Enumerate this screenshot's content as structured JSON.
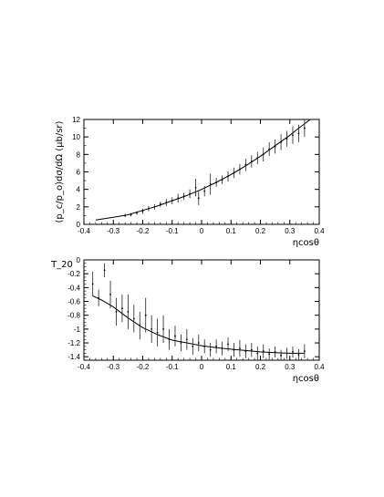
{
  "chart_data": [
    {
      "type": "scatter",
      "xlabel": "ηcosθ",
      "ylabel": "(p_c/p_o)dσ/dΩ (μb/sr)",
      "xlim": [
        -0.4,
        0.4
      ],
      "ylim": [
        0,
        12
      ],
      "xticks": [
        -0.4,
        -0.3,
        -0.2,
        -0.1,
        0,
        0.1,
        0.2,
        0.3,
        0.4
      ],
      "xtick_labels": [
        "-0.4",
        "-0.3",
        "-0.2",
        "-0.1",
        "0",
        "0.1",
        "0.2",
        "0.3",
        "0.4"
      ],
      "yticks": [
        0,
        2,
        4,
        6,
        8,
        10,
        12
      ],
      "ytick_labels": [
        "0",
        "2",
        "4",
        "6",
        "8",
        "10",
        "12"
      ],
      "curve": {
        "x": [
          -0.36,
          -0.3,
          -0.25,
          -0.2,
          -0.15,
          -0.1,
          -0.05,
          0.0,
          0.05,
          0.1,
          0.15,
          0.2,
          0.25,
          0.3,
          0.33,
          0.37
        ],
        "y": [
          0.5,
          0.8,
          1.1,
          1.6,
          2.1,
          2.7,
          3.3,
          4.0,
          4.8,
          5.7,
          6.7,
          7.8,
          9.0,
          10.2,
          11.0,
          12.0
        ]
      },
      "points": [
        {
          "x": -0.26,
          "y": 1.0,
          "err": 0.2
        },
        {
          "x": -0.24,
          "y": 1.1,
          "err": 0.2
        },
        {
          "x": -0.22,
          "y": 1.3,
          "err": 0.2
        },
        {
          "x": -0.2,
          "y": 1.5,
          "err": 0.3
        },
        {
          "x": -0.18,
          "y": 1.8,
          "err": 0.3
        },
        {
          "x": -0.16,
          "y": 2.0,
          "err": 0.3
        },
        {
          "x": -0.14,
          "y": 2.3,
          "err": 0.3
        },
        {
          "x": -0.12,
          "y": 2.5,
          "err": 0.4
        },
        {
          "x": -0.1,
          "y": 2.7,
          "err": 0.4
        },
        {
          "x": -0.08,
          "y": 3.0,
          "err": 0.5
        },
        {
          "x": -0.06,
          "y": 3.2,
          "err": 0.4
        },
        {
          "x": -0.04,
          "y": 3.5,
          "err": 0.5
        },
        {
          "x": -0.02,
          "y": 4.2,
          "err": 1.0
        },
        {
          "x": -0.01,
          "y": 3.0,
          "err": 0.8
        },
        {
          "x": 0.01,
          "y": 3.8,
          "err": 0.6
        },
        {
          "x": 0.03,
          "y": 4.6,
          "err": 1.2
        },
        {
          "x": 0.05,
          "y": 4.8,
          "err": 0.5
        },
        {
          "x": 0.07,
          "y": 5.1,
          "err": 0.5
        },
        {
          "x": 0.09,
          "y": 5.5,
          "err": 0.6
        },
        {
          "x": 0.11,
          "y": 5.9,
          "err": 0.6
        },
        {
          "x": 0.13,
          "y": 6.3,
          "err": 0.6
        },
        {
          "x": 0.15,
          "y": 6.8,
          "err": 0.7
        },
        {
          "x": 0.17,
          "y": 7.2,
          "err": 0.7
        },
        {
          "x": 0.19,
          "y": 7.6,
          "err": 0.7
        },
        {
          "x": 0.21,
          "y": 8.0,
          "err": 0.8
        },
        {
          "x": 0.23,
          "y": 8.6,
          "err": 0.8
        },
        {
          "x": 0.25,
          "y": 8.9,
          "err": 0.8
        },
        {
          "x": 0.27,
          "y": 9.4,
          "err": 0.9
        },
        {
          "x": 0.29,
          "y": 9.8,
          "err": 0.9
        },
        {
          "x": 0.31,
          "y": 10.2,
          "err": 1.0
        },
        {
          "x": 0.33,
          "y": 10.4,
          "err": 1.0
        },
        {
          "x": 0.35,
          "y": 11.0,
          "err": 1.0
        }
      ]
    },
    {
      "type": "scatter",
      "xlabel": "ηcosθ",
      "ylabel": "T_20",
      "xlim": [
        -0.4,
        0.4
      ],
      "ylim": [
        -1.45,
        0
      ],
      "xticks": [
        -0.4,
        -0.3,
        -0.2,
        -0.1,
        0,
        0.1,
        0.2,
        0.3,
        0.4
      ],
      "xtick_labels": [
        "-0.4",
        "-0.3",
        "-0.2",
        "-0.1",
        "0",
        "0.1",
        "0.2",
        "0.3",
        "0.4"
      ],
      "yticks": [
        0,
        -0.2,
        -0.4,
        -0.6,
        -0.8,
        -1,
        -1.2,
        -1.4
      ],
      "ytick_labels": [
        "0",
        "-0.2",
        "-0.4",
        "-0.6",
        "-0.8",
        "-1",
        "-1.2",
        "-1.4"
      ],
      "curve": {
        "x": [
          -0.37,
          -0.34,
          -0.3,
          -0.25,
          -0.2,
          -0.15,
          -0.1,
          -0.05,
          0.0,
          0.05,
          0.1,
          0.15,
          0.2,
          0.25,
          0.3,
          0.35
        ],
        "y": [
          -0.52,
          -0.58,
          -0.68,
          -0.84,
          -0.98,
          -1.08,
          -1.16,
          -1.2,
          -1.24,
          -1.27,
          -1.29,
          -1.31,
          -1.33,
          -1.34,
          -1.35,
          -1.35
        ]
      },
      "points": [
        {
          "x": -0.37,
          "y": -0.35,
          "err": 0.18
        },
        {
          "x": -0.35,
          "y": -0.55,
          "err": 0.12
        },
        {
          "x": -0.33,
          "y": -0.15,
          "err": 0.1
        },
        {
          "x": -0.31,
          "y": -0.5,
          "err": 0.2
        },
        {
          "x": -0.29,
          "y": -0.75,
          "err": 0.2
        },
        {
          "x": -0.27,
          "y": -0.7,
          "err": 0.2
        },
        {
          "x": -0.25,
          "y": -0.75,
          "err": 0.25
        },
        {
          "x": -0.23,
          "y": -0.85,
          "err": 0.2
        },
        {
          "x": -0.21,
          "y": -0.95,
          "err": 0.2
        },
        {
          "x": -0.19,
          "y": -0.8,
          "err": 0.25
        },
        {
          "x": -0.17,
          "y": -1.0,
          "err": 0.2
        },
        {
          "x": -0.15,
          "y": -1.05,
          "err": 0.2
        },
        {
          "x": -0.13,
          "y": -1.0,
          "err": 0.2
        },
        {
          "x": -0.11,
          "y": -1.15,
          "err": 0.15
        },
        {
          "x": -0.09,
          "y": -1.1,
          "err": 0.15
        },
        {
          "x": -0.07,
          "y": -1.2,
          "err": 0.12
        },
        {
          "x": -0.05,
          "y": -1.15,
          "err": 0.15
        },
        {
          "x": -0.03,
          "y": -1.25,
          "err": 0.12
        },
        {
          "x": -0.01,
          "y": -1.2,
          "err": 0.12
        },
        {
          "x": 0.01,
          "y": -1.25,
          "err": 0.1
        },
        {
          "x": 0.03,
          "y": -1.3,
          "err": 0.1
        },
        {
          "x": 0.05,
          "y": -1.25,
          "err": 0.1
        },
        {
          "x": 0.07,
          "y": -1.28,
          "err": 0.1
        },
        {
          "x": 0.09,
          "y": -1.22,
          "err": 0.1
        },
        {
          "x": 0.11,
          "y": -1.3,
          "err": 0.1
        },
        {
          "x": 0.13,
          "y": -1.28,
          "err": 0.12
        },
        {
          "x": 0.15,
          "y": -1.32,
          "err": 0.1
        },
        {
          "x": 0.17,
          "y": -1.3,
          "err": 0.1
        },
        {
          "x": 0.19,
          "y": -1.35,
          "err": 0.1
        },
        {
          "x": 0.21,
          "y": -1.32,
          "err": 0.1
        },
        {
          "x": 0.23,
          "y": -1.36,
          "err": 0.08
        },
        {
          "x": 0.25,
          "y": -1.33,
          "err": 0.08
        },
        {
          "x": 0.27,
          "y": -1.38,
          "err": 0.08
        },
        {
          "x": 0.29,
          "y": -1.35,
          "err": 0.08
        },
        {
          "x": 0.31,
          "y": -1.33,
          "err": 0.08
        },
        {
          "x": 0.33,
          "y": -1.37,
          "err": 0.08
        },
        {
          "x": 0.35,
          "y": -1.32,
          "err": 0.1
        }
      ]
    }
  ]
}
